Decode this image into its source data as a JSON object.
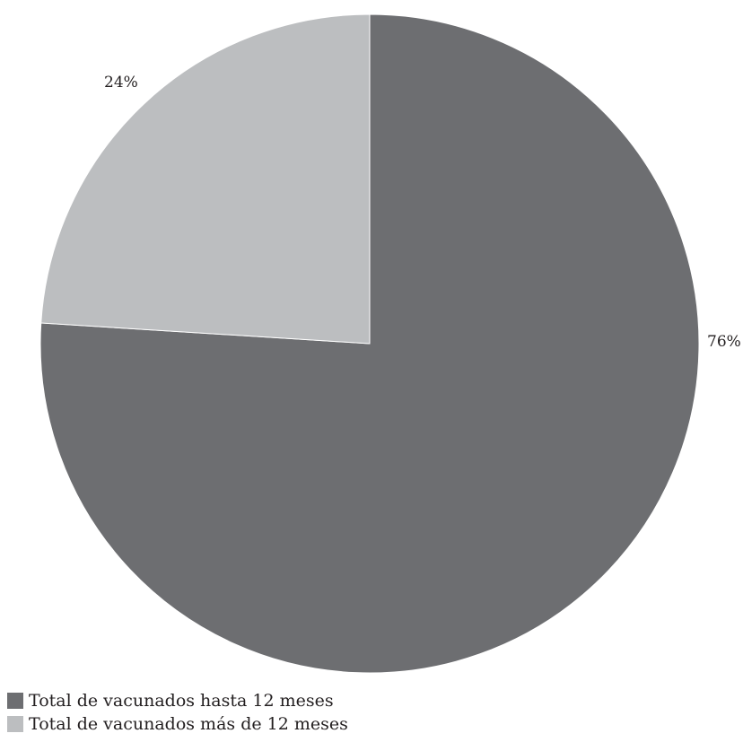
{
  "chart_data": {
    "type": "pie",
    "title": "",
    "slices": [
      {
        "label": "Total de vacunados hasta 12 meses",
        "value": 76,
        "display": "76%",
        "color": "#6d6e71"
      },
      {
        "label": "Total de vacunados más de 12 meses",
        "value": 24,
        "display": "24%",
        "color": "#bcbec0"
      }
    ],
    "legend_position": "bottom-left"
  }
}
